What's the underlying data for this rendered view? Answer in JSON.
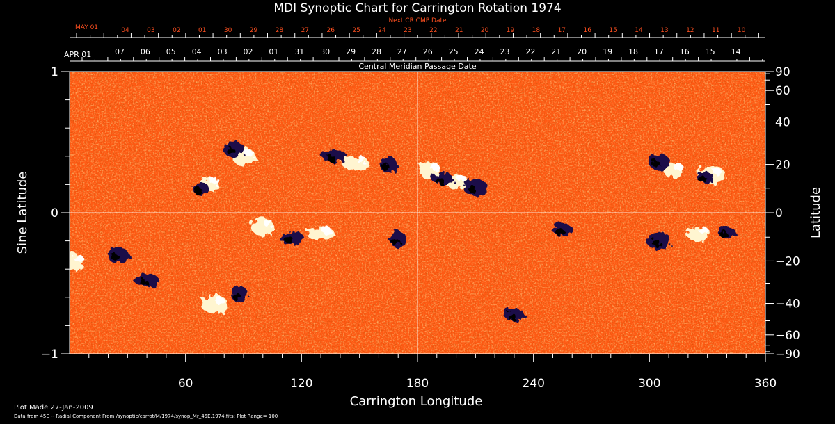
{
  "chart_data": {
    "type": "heatmap",
    "title": "MDI Synoptic Chart for Carrington Rotation 1974",
    "top_axis_label": "Next CR CMP Date",
    "top_axis_first_label": "MAY 01",
    "top_axis_ticks": [
      "04",
      "03",
      "02",
      "01",
      "30",
      "29",
      "28",
      "27",
      "26",
      "25",
      "24",
      "23",
      "22",
      "21",
      "20",
      "19",
      "18",
      "17",
      "16",
      "15",
      "14",
      "13",
      "12",
      "11",
      "10"
    ],
    "second_axis_first_label": "APR 01",
    "second_axis_ticks": [
      "07",
      "06",
      "05",
      "04",
      "03",
      "02",
      "01",
      "31",
      "30",
      "29",
      "28",
      "27",
      "26",
      "25",
      "24",
      "23",
      "22",
      "21",
      "20",
      "19",
      "18",
      "17",
      "16",
      "15",
      "14"
    ],
    "second_axis_label": "Central Meridian Passage Date",
    "xlabel": "Carrington Longitude",
    "xlim": [
      0,
      360
    ],
    "x_ticks": [
      60,
      120,
      180,
      240,
      300,
      360
    ],
    "ylabel": "Sine Latitude",
    "ylim": [
      -1,
      1
    ],
    "y_ticks": [
      "1",
      "0",
      "−1"
    ],
    "y_tick_values": [
      1,
      0,
      -1
    ],
    "y2label": "Latitude",
    "y2_ticks": [
      90,
      60,
      40,
      20,
      0,
      -20,
      -40,
      -60,
      -90
    ],
    "y2_tick_labels": [
      "90",
      "60",
      "40",
      "20",
      "0",
      "−20",
      "−40",
      "−60",
      "−90"
    ],
    "colormap": [
      "#1a0a4a",
      "#000000",
      "#c82800",
      "#ff5a14",
      "#ffd070",
      "#ffffff"
    ],
    "background_color": "#ff5a14",
    "crosshair": {
      "longitude": 180,
      "sine_latitude": 0
    },
    "positive_regions": [
      {
        "lon": 72,
        "sinlat": 0.2
      },
      {
        "lon": 90,
        "sinlat": 0.4
      },
      {
        "lon": 148,
        "sinlat": 0.35
      },
      {
        "lon": 186,
        "sinlat": 0.3
      },
      {
        "lon": 200,
        "sinlat": 0.22
      },
      {
        "lon": 332,
        "sinlat": 0.27
      },
      {
        "lon": 312,
        "sinlat": 0.3
      },
      {
        "lon": 100,
        "sinlat": -0.1
      },
      {
        "lon": 130,
        "sinlat": -0.15
      },
      {
        "lon": 2,
        "sinlat": -0.35
      },
      {
        "lon": 325,
        "sinlat": -0.15
      },
      {
        "lon": 75,
        "sinlat": -0.65
      }
    ],
    "negative_regions": [
      {
        "lon": 68,
        "sinlat": 0.17
      },
      {
        "lon": 85,
        "sinlat": 0.45
      },
      {
        "lon": 137,
        "sinlat": 0.4
      },
      {
        "lon": 165,
        "sinlat": 0.34
      },
      {
        "lon": 193,
        "sinlat": 0.24
      },
      {
        "lon": 210,
        "sinlat": 0.18
      },
      {
        "lon": 329,
        "sinlat": 0.25
      },
      {
        "lon": 305,
        "sinlat": 0.36
      },
      {
        "lon": 115,
        "sinlat": -0.18
      },
      {
        "lon": 170,
        "sinlat": -0.19
      },
      {
        "lon": 255,
        "sinlat": -0.12
      },
      {
        "lon": 305,
        "sinlat": -0.2
      },
      {
        "lon": 340,
        "sinlat": -0.14
      },
      {
        "lon": 25,
        "sinlat": -0.3
      },
      {
        "lon": 40,
        "sinlat": -0.48
      },
      {
        "lon": 88,
        "sinlat": -0.58
      },
      {
        "lon": 230,
        "sinlat": -0.72
      }
    ]
  },
  "footer": {
    "plot_made": "Plot Made 27-Jan-2009",
    "data_from": "Data from 45E -- Radial Component From /synoptic/carrot/M/1974/synop_Mr_45E.1974.fits; Plot Range= 100"
  }
}
